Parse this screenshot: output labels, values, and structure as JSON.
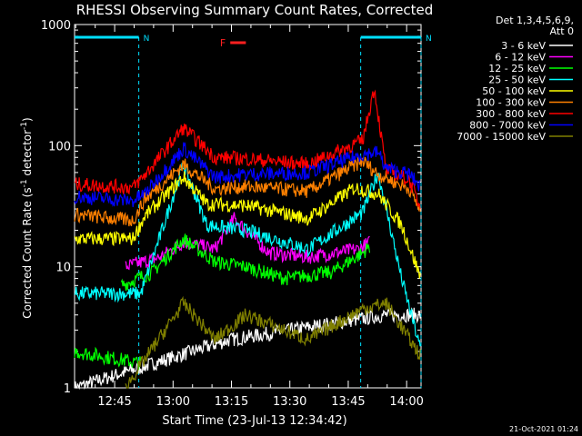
{
  "chart_data": {
    "type": "line",
    "title": "RHESSI Observing Summary Count Rates, Corrected",
    "xlabel": "Start Time (23-Jul-13 12:34:42)",
    "ylabel_main": "Corrected Count Rate (s",
    "ylabel_sup1": "-1",
    "ylabel_mid": " detector",
    "ylabel_sup2": "-1",
    "ylabel_end": ")",
    "yscale": "log",
    "ylim": [
      1,
      1000
    ],
    "xlim_minutes": [
      0,
      89
    ],
    "x_unit": "minutes after start",
    "y_ticks": [
      {
        "v": 1,
        "label": "1"
      },
      {
        "v": 10,
        "label": "10"
      },
      {
        "v": 100,
        "label": "100"
      },
      {
        "v": 1000,
        "label": "1000"
      }
    ],
    "x_ticks": [
      {
        "m": 10.3,
        "label": "12:45"
      },
      {
        "m": 25.3,
        "label": "13:00"
      },
      {
        "m": 40.3,
        "label": "13:15"
      },
      {
        "m": 55.3,
        "label": "13:30"
      },
      {
        "m": 70.3,
        "label": "13:45"
      },
      {
        "m": 85.3,
        "label": "14:00"
      }
    ],
    "legend_title": [
      "Det 1,3,4,5,6,9,",
      "Att 0"
    ],
    "flags": [
      {
        "label": "N",
        "color": "#00e0ff",
        "x0": 0,
        "x1": 16.5
      },
      {
        "label": "N",
        "color": "#00e0ff",
        "x0": 73.5,
        "x1": 89
      }
    ],
    "flare_marker": {
      "label": "F",
      "color": "#ff2020",
      "x0": 40,
      "x1": 44
    },
    "night_lines_minutes": [
      16.5,
      73.5,
      89
    ],
    "series": [
      {
        "name": "3 - 6 keV",
        "color": "#ffffff",
        "segments": [
          [
            [
              0,
              1.0
            ],
            [
              40,
              2.5
            ],
            [
              80,
              4.0
            ],
            [
              89,
              4.0
            ]
          ]
        ]
      },
      {
        "name": "6 - 12 keV",
        "color": "#ff00ff",
        "segments": [
          [
            [
              13,
              10
            ],
            [
              22,
              12
            ],
            [
              28,
              16
            ],
            [
              36,
              14
            ],
            [
              41,
              25
            ],
            [
              50,
              13
            ],
            [
              60,
              12
            ],
            [
              73,
              14
            ],
            [
              76,
              16
            ]
          ]
        ]
      },
      {
        "name": "12 - 25 keV",
        "color": "#00ff00",
        "segments": [
          [
            [
              0,
              2
            ],
            [
              17,
              1.6
            ]
          ],
          [
            [
              12,
              7
            ],
            [
              20,
              9
            ],
            [
              28,
              17
            ],
            [
              36,
              11
            ],
            [
              44,
              10
            ],
            [
              54,
              8
            ],
            [
              66,
              9
            ],
            [
              74,
              13
            ],
            [
              76,
              15
            ]
          ]
        ]
      },
      {
        "name": "25 - 50 keV",
        "color": "#00ffff",
        "segments": [
          [
            [
              0,
              6
            ],
            [
              17,
              6
            ],
            [
              22,
              18
            ],
            [
              28,
              70
            ],
            [
              34,
              22
            ],
            [
              44,
              20
            ],
            [
              60,
              14
            ],
            [
              74,
              28
            ],
            [
              78,
              60
            ],
            [
              84,
              8
            ],
            [
              89,
              2
            ]
          ]
        ]
      },
      {
        "name": "50 - 100 keV",
        "color": "#ffff00",
        "segments": [
          [
            [
              0,
              17
            ],
            [
              15,
              17
            ],
            [
              18,
              26
            ],
            [
              28,
              55
            ],
            [
              34,
              33
            ],
            [
              44,
              32
            ],
            [
              60,
              25
            ],
            [
              72,
              45
            ],
            [
              78,
              40
            ],
            [
              84,
              22
            ],
            [
              89,
              8
            ]
          ]
        ]
      },
      {
        "name": "100 - 300 keV",
        "color": "#ff8000",
        "segments": [
          [
            [
              0,
              27
            ],
            [
              15,
              24
            ],
            [
              18,
              36
            ],
            [
              28,
              70
            ],
            [
              36,
              44
            ],
            [
              44,
              46
            ],
            [
              60,
              42
            ],
            [
              74,
              75
            ],
            [
              78,
              58
            ],
            [
              86,
              44
            ],
            [
              89,
              28
            ]
          ]
        ]
      },
      {
        "name": "300 - 800 keV",
        "color": "#ff0000",
        "segments": [
          [
            [
              0,
              48
            ],
            [
              15,
              45
            ],
            [
              18,
              57
            ],
            [
              28,
              140
            ],
            [
              36,
              80
            ],
            [
              44,
              78
            ],
            [
              60,
              70
            ],
            [
              74,
              110
            ],
            [
              77,
              300
            ],
            [
              80,
              63
            ],
            [
              86,
              52
            ],
            [
              89,
              30
            ]
          ]
        ]
      },
      {
        "name": "800 - 7000 keV",
        "color": "#0000ff",
        "segments": [
          [
            [
              0,
              38
            ],
            [
              15,
              35
            ],
            [
              18,
              40
            ],
            [
              28,
              95
            ],
            [
              36,
              55
            ],
            [
              44,
              58
            ],
            [
              60,
              60
            ],
            [
              74,
              85
            ],
            [
              78,
              88
            ],
            [
              80,
              65
            ],
            [
              86,
              58
            ],
            [
              89,
              45
            ]
          ]
        ]
      },
      {
        "name": "7000 - 15000 keV",
        "color": "#808000",
        "segments": [
          [
            [
              13,
              1.0
            ],
            [
              28,
              5
            ],
            [
              36,
              2.5
            ],
            [
              44,
              4
            ],
            [
              60,
              2.5
            ],
            [
              74,
              4.5
            ],
            [
              80,
              5
            ],
            [
              89,
              1.8
            ]
          ]
        ]
      }
    ],
    "footer_stamp": "21-Oct-2021 01:24"
  }
}
